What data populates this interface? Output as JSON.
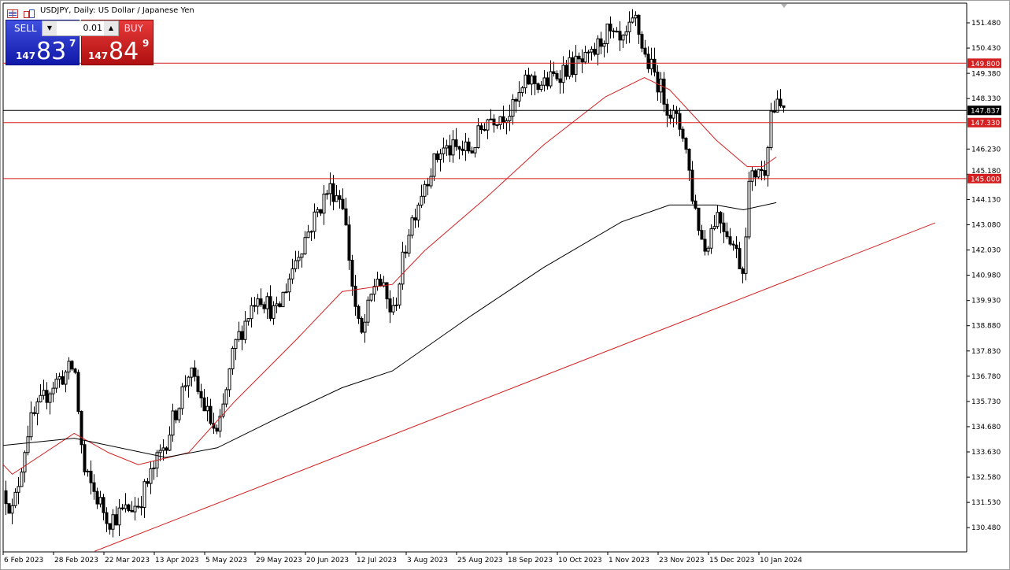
{
  "window": {
    "title": "USDJPY, Daily:  US Dollar / Japanese Yen",
    "icons": [
      "chart-list-icon",
      "symbol-window-icon"
    ]
  },
  "trade_panel": {
    "sell_label": "SELL",
    "buy_label": "BUY",
    "lot_size": "0.01",
    "sell_price": {
      "prefix": "147",
      "big": "83",
      "sup": "7"
    },
    "buy_price": {
      "prefix": "147",
      "big": "84",
      "sup": "9"
    },
    "sell_color": "#1a22c0",
    "buy_color": "#d42020"
  },
  "chart_data": {
    "type": "candlestick",
    "symbol": "USDJPY",
    "timeframe": "Daily",
    "ylim": [
      129.9,
      152.2
    ],
    "grid": false,
    "y_ticks": [
      "151.480",
      "150.430",
      "149.380",
      "148.330",
      "146.230",
      "145.180",
      "144.130",
      "143.080",
      "142.030",
      "140.980",
      "139.930",
      "138.880",
      "137.830",
      "136.780",
      "135.730",
      "134.680",
      "133.630",
      "132.580",
      "131.530",
      "130.480"
    ],
    "x_ticks": [
      {
        "label": "6 Feb 2023",
        "date": "2023-02-06"
      },
      {
        "label": "28 Feb 2023",
        "date": "2023-02-28"
      },
      {
        "label": "22 Mar 2023",
        "date": "2023-03-22"
      },
      {
        "label": "13 Apr 2023",
        "date": "2023-04-13"
      },
      {
        "label": "5 May 2023",
        "date": "2023-05-05"
      },
      {
        "label": "29 May 2023",
        "date": "2023-05-29"
      },
      {
        "label": "20 Jun 2023",
        "date": "2023-06-20"
      },
      {
        "label": "12 Jul 2023",
        "date": "2023-07-12"
      },
      {
        "label": "3 Aug 2023",
        "date": "2023-08-03"
      },
      {
        "label": "25 Aug 2023",
        "date": "2023-08-25"
      },
      {
        "label": "18 Sep 2023",
        "date": "2023-09-18"
      },
      {
        "label": "10 Oct 2023",
        "date": "2023-10-10"
      },
      {
        "label": "1 Nov 2023",
        "date": "2023-11-01"
      },
      {
        "label": "23 Nov 2023",
        "date": "2023-11-23"
      },
      {
        "label": "15 Dec 2023",
        "date": "2023-12-15"
      },
      {
        "label": "10 Jan 2024",
        "date": "2024-01-10"
      }
    ],
    "close_path": [
      [
        "2023-02-06",
        132.1
      ],
      [
        "2023-02-10",
        131.1
      ],
      [
        "2023-02-17",
        134.7
      ],
      [
        "2023-02-27",
        136.4
      ],
      [
        "2023-03-09",
        137.2
      ],
      [
        "2023-03-13",
        132.8
      ],
      [
        "2023-03-24",
        130.8
      ],
      [
        "2023-04-06",
        131.5
      ],
      [
        "2023-04-18",
        134.1
      ],
      [
        "2023-04-28",
        137.0
      ],
      [
        "2023-05-11",
        134.2
      ],
      [
        "2023-05-19",
        138.0
      ],
      [
        "2023-05-30",
        140.3
      ],
      [
        "2023-06-07",
        139.3
      ],
      [
        "2023-06-16",
        141.8
      ],
      [
        "2023-06-30",
        144.6
      ],
      [
        "2023-07-06",
        144.2
      ],
      [
        "2023-07-11",
        140.0
      ],
      [
        "2023-07-14",
        138.3
      ],
      [
        "2023-07-21",
        141.0
      ],
      [
        "2023-07-28",
        139.3
      ],
      [
        "2023-08-04",
        142.9
      ],
      [
        "2023-08-11",
        144.9
      ],
      [
        "2023-08-18",
        146.2
      ],
      [
        "2023-09-01",
        146.2
      ],
      [
        "2023-09-08",
        147.5
      ],
      [
        "2023-09-20",
        147.8
      ],
      [
        "2023-09-27",
        149.1
      ],
      [
        "2023-10-04",
        148.9
      ],
      [
        "2023-10-13",
        149.6
      ],
      [
        "2023-10-24",
        149.9
      ],
      [
        "2023-10-31",
        151.1
      ],
      [
        "2023-11-07",
        150.5
      ],
      [
        "2023-11-13",
        151.6
      ],
      [
        "2023-11-17",
        150.1
      ],
      [
        "2023-11-22",
        149.2
      ],
      [
        "2023-11-28",
        147.8
      ],
      [
        "2023-12-04",
        146.9
      ],
      [
        "2023-12-08",
        144.2
      ],
      [
        "2023-12-13",
        142.0
      ],
      [
        "2023-12-19",
        143.6
      ],
      [
        "2023-12-26",
        142.6
      ],
      [
        "2024-01-02",
        141.1
      ],
      [
        "2024-01-04",
        144.6
      ],
      [
        "2024-01-10",
        145.6
      ],
      [
        "2024-01-12",
        144.9
      ],
      [
        "2024-01-16",
        147.8
      ],
      [
        "2024-01-19",
        147.95
      ]
    ],
    "moving_averages": [
      {
        "color": "#d42020",
        "points": [
          [
            "2023-02-06",
            133.1
          ],
          [
            "2023-02-10",
            132.7
          ],
          [
            "2023-03-09",
            134.4
          ],
          [
            "2023-03-24",
            133.6
          ],
          [
            "2023-04-06",
            133.1
          ],
          [
            "2023-04-28",
            133.6
          ],
          [
            "2023-05-19",
            135.7
          ],
          [
            "2023-06-16",
            138.3
          ],
          [
            "2023-07-06",
            140.3
          ],
          [
            "2023-07-28",
            140.6
          ],
          [
            "2023-08-11",
            142.0
          ],
          [
            "2023-09-08",
            144.2
          ],
          [
            "2023-10-04",
            146.4
          ],
          [
            "2023-10-31",
            148.4
          ],
          [
            "2023-11-17",
            149.2
          ],
          [
            "2023-11-28",
            148.7
          ],
          [
            "2023-12-19",
            146.6
          ],
          [
            "2024-01-04",
            145.5
          ],
          [
            "2024-01-12",
            145.5
          ],
          [
            "2024-01-19",
            145.9
          ]
        ]
      },
      {
        "color": "#000000",
        "points": [
          [
            "2023-02-06",
            133.9
          ],
          [
            "2023-03-09",
            134.2
          ],
          [
            "2023-04-18",
            133.4
          ],
          [
            "2023-05-11",
            133.8
          ],
          [
            "2023-06-07",
            135.0
          ],
          [
            "2023-07-06",
            136.3
          ],
          [
            "2023-07-28",
            137.0
          ],
          [
            "2023-09-01",
            139.3
          ],
          [
            "2023-10-04",
            141.3
          ],
          [
            "2023-11-07",
            143.2
          ],
          [
            "2023-11-28",
            143.9
          ],
          [
            "2023-12-19",
            143.9
          ],
          [
            "2024-01-02",
            143.7
          ],
          [
            "2024-01-19",
            144.0
          ]
        ]
      }
    ],
    "horizontal_levels": [
      {
        "price": 149.8,
        "label": "149.800",
        "color": "#d42020"
      },
      {
        "price": 147.33,
        "label": "147.330",
        "color": "#d42020"
      },
      {
        "price": 145.0,
        "label": "145.000",
        "color": "#d42020"
      }
    ],
    "current_price": {
      "price": 147.837,
      "label": "147.837",
      "color": "#000000"
    },
    "trendline": {
      "color": "#d42020",
      "points": [
        [
          "2023-03-18",
          129.5
        ],
        [
          "2024-04-10",
          143.16
        ]
      ]
    }
  }
}
